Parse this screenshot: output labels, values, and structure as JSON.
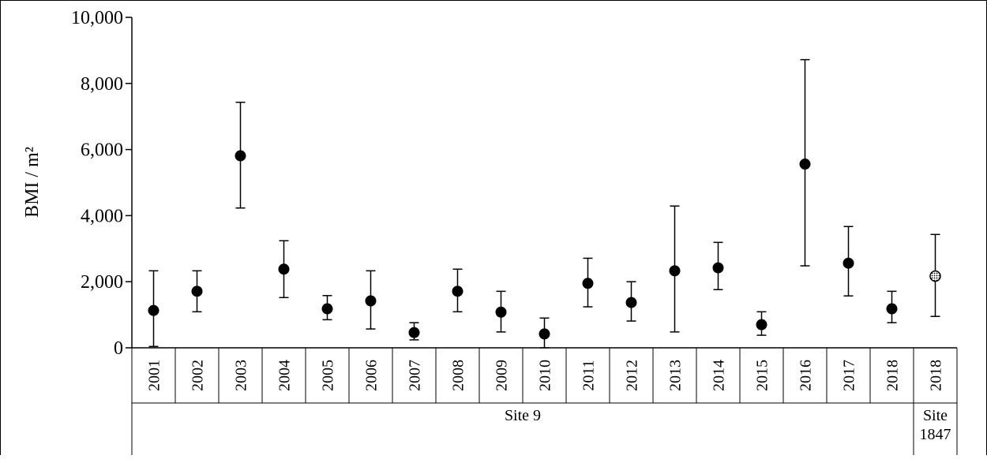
{
  "chart_data": {
    "type": "scatter",
    "ylabel": "BMI / m²",
    "ylim": [
      0,
      10000
    ],
    "yticks": [
      0,
      2000,
      4000,
      6000,
      8000,
      10000
    ],
    "ytick_labels": [
      "0",
      "2,000",
      "4,000",
      "6,000",
      "8,000",
      "10,000"
    ],
    "grid": false,
    "categories": [
      "2001",
      "2002",
      "2003",
      "2004",
      "2005",
      "2006",
      "2007",
      "2008",
      "2009",
      "2010",
      "2011",
      "2012",
      "2013",
      "2014",
      "2015",
      "2016",
      "2017",
      "2018",
      "2018"
    ],
    "groups": [
      {
        "label": "Site 9",
        "count": 18
      },
      {
        "label": "Site 1847",
        "count": 1
      }
    ],
    "series": [
      {
        "values": [
          1130,
          1710,
          5810,
          2380,
          1180,
          1420,
          460,
          1710,
          1080,
          420,
          1950,
          1370,
          2330,
          2420,
          700,
          5560,
          2560,
          1180,
          2170
        ],
        "error_low": [
          40,
          1090,
          4230,
          1520,
          850,
          570,
          240,
          1090,
          480,
          0,
          1240,
          810,
          480,
          1760,
          380,
          2480,
          1570,
          760,
          950
        ],
        "error_high": [
          2330,
          2330,
          7430,
          3240,
          1580,
          2330,
          760,
          2380,
          1710,
          900,
          2710,
          2000,
          4290,
          3190,
          1090,
          8720,
          3670,
          1710,
          3430
        ],
        "marker_styles": [
          "filled",
          "filled",
          "filled",
          "filled",
          "filled",
          "filled",
          "filled",
          "filled",
          "filled",
          "filled",
          "filled",
          "filled",
          "filled",
          "filled",
          "filled",
          "filled",
          "filled",
          "filled",
          "hatched"
        ]
      }
    ]
  }
}
